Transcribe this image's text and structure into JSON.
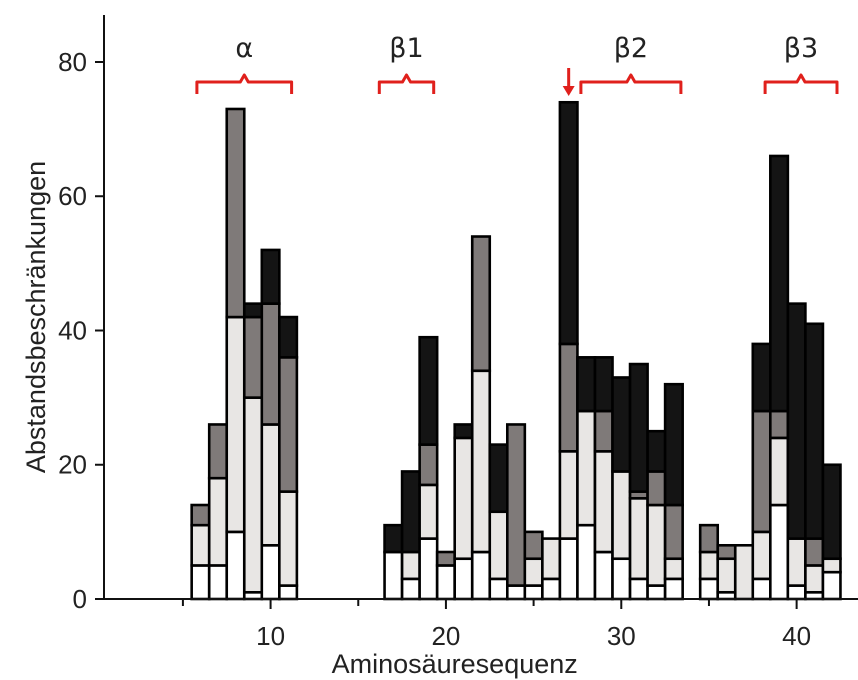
{
  "chart_data": {
    "type": "bar",
    "stacked": true,
    "xlabel": "Aminosäuresequenz",
    "ylabel": "Abstandsbeschränkungen",
    "xlim": [
      0.5,
      43.5
    ],
    "ylim": [
      0,
      87
    ],
    "x_ticks": [
      10,
      20,
      30,
      40
    ],
    "x_minor_ticks": [
      5,
      15,
      25,
      35
    ],
    "y_ticks": [
      0,
      20,
      40,
      60,
      80
    ],
    "colors": {
      "white": "#ffffff",
      "light": "#e8e6e4",
      "gray": "#7f7a79",
      "black": "#141414",
      "bracket": "#e0201c",
      "outline": "#000000"
    },
    "series_order": [
      "white",
      "light",
      "gray",
      "black"
    ],
    "bars": [
      {
        "residue": 6,
        "segments": [
          5,
          6,
          3,
          0
        ]
      },
      {
        "residue": 7,
        "segments": [
          5,
          13,
          8,
          0
        ]
      },
      {
        "residue": 8,
        "segments": [
          10,
          32,
          31,
          0
        ]
      },
      {
        "residue": 9,
        "segments": [
          1,
          29,
          12,
          2
        ]
      },
      {
        "residue": 10,
        "segments": [
          8,
          18,
          18,
          8
        ]
      },
      {
        "residue": 11,
        "segments": [
          2,
          14,
          20,
          6
        ]
      },
      {
        "residue": 17,
        "segments": [
          7,
          0,
          0,
          4
        ]
      },
      {
        "residue": 18,
        "segments": [
          3,
          4,
          0,
          12
        ]
      },
      {
        "residue": 19,
        "segments": [
          9,
          8,
          6,
          16
        ]
      },
      {
        "residue": 20,
        "segments": [
          5,
          0,
          2,
          0
        ]
      },
      {
        "residue": 21,
        "segments": [
          6,
          18,
          0,
          2
        ]
      },
      {
        "residue": 22,
        "segments": [
          7,
          27,
          20,
          0
        ]
      },
      {
        "residue": 23,
        "segments": [
          3,
          10,
          0,
          10
        ]
      },
      {
        "residue": 24,
        "segments": [
          2,
          0,
          24,
          0
        ]
      },
      {
        "residue": 25,
        "segments": [
          2,
          4,
          4,
          0
        ]
      },
      {
        "residue": 26,
        "segments": [
          3,
          6,
          0,
          0
        ]
      },
      {
        "residue": 27,
        "segments": [
          9,
          13,
          16,
          36
        ]
      },
      {
        "residue": 28,
        "segments": [
          11,
          17,
          0,
          8
        ]
      },
      {
        "residue": 29,
        "segments": [
          7,
          15,
          6,
          8
        ]
      },
      {
        "residue": 30,
        "segments": [
          6,
          13,
          0,
          14
        ]
      },
      {
        "residue": 31,
        "segments": [
          3,
          12,
          1,
          19
        ]
      },
      {
        "residue": 32,
        "segments": [
          2,
          12,
          5,
          6
        ]
      },
      {
        "residue": 33,
        "segments": [
          3,
          3,
          8,
          18
        ]
      },
      {
        "residue": 35,
        "segments": [
          3,
          4,
          4,
          0
        ]
      },
      {
        "residue": 36,
        "segments": [
          1,
          5,
          2,
          0
        ]
      },
      {
        "residue": 37,
        "segments": [
          0,
          8,
          0,
          0
        ]
      },
      {
        "residue": 38,
        "segments": [
          3,
          7,
          18,
          10
        ]
      },
      {
        "residue": 39,
        "segments": [
          14,
          10,
          4,
          38
        ]
      },
      {
        "residue": 40,
        "segments": [
          2,
          7,
          0,
          35
        ]
      },
      {
        "residue": 41,
        "segments": [
          1,
          4,
          4,
          32
        ]
      },
      {
        "residue": 42,
        "segments": [
          4,
          2,
          0,
          14
        ]
      }
    ],
    "regions": [
      {
        "label": "α",
        "start": 5.8,
        "end": 11.2
      },
      {
        "label": "β1",
        "start": 16.2,
        "end": 19.3
      },
      {
        "label": "β2",
        "start": 27.7,
        "end": 33.4
      },
      {
        "label": "β3",
        "start": 38.2,
        "end": 42.3
      }
    ],
    "arrow_residue": 27
  }
}
